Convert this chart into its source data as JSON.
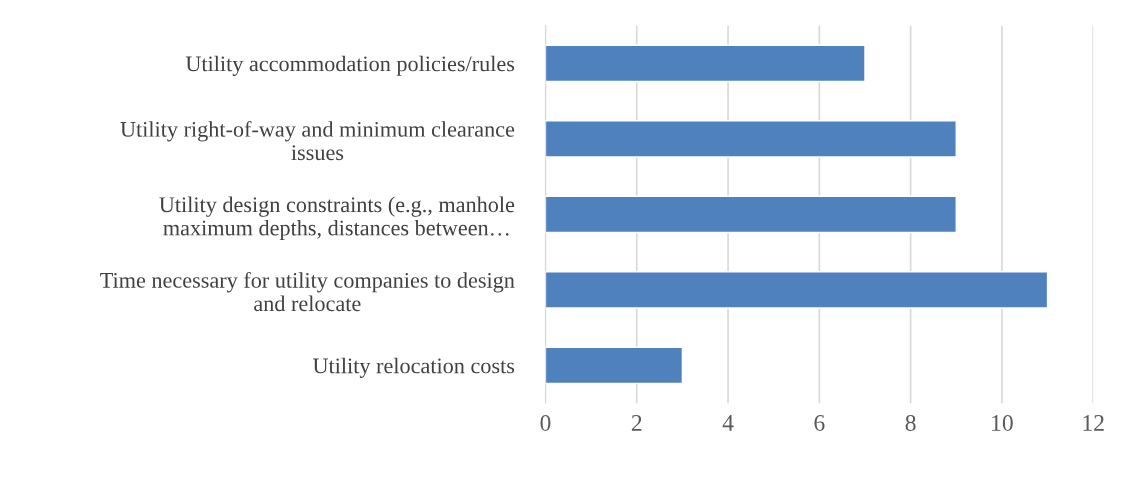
{
  "chart_data": {
    "type": "bar",
    "orientation": "horizontal",
    "categories": [
      "Utility accommodation policies/rules",
      "Utility right-of-way and minimum clearance\nissues",
      "Utility design constraints (e.g., manhole\nmaximum depths, distances between…",
      "Time necessary for utility companies to design\nand relocate",
      "Utility relocation costs"
    ],
    "values": [
      7,
      9,
      9,
      11,
      3
    ],
    "color": "#4f81bd",
    "xlim": [
      0,
      12
    ],
    "xticks": [
      0,
      2,
      4,
      6,
      8,
      10,
      12
    ],
    "grid": "x"
  }
}
